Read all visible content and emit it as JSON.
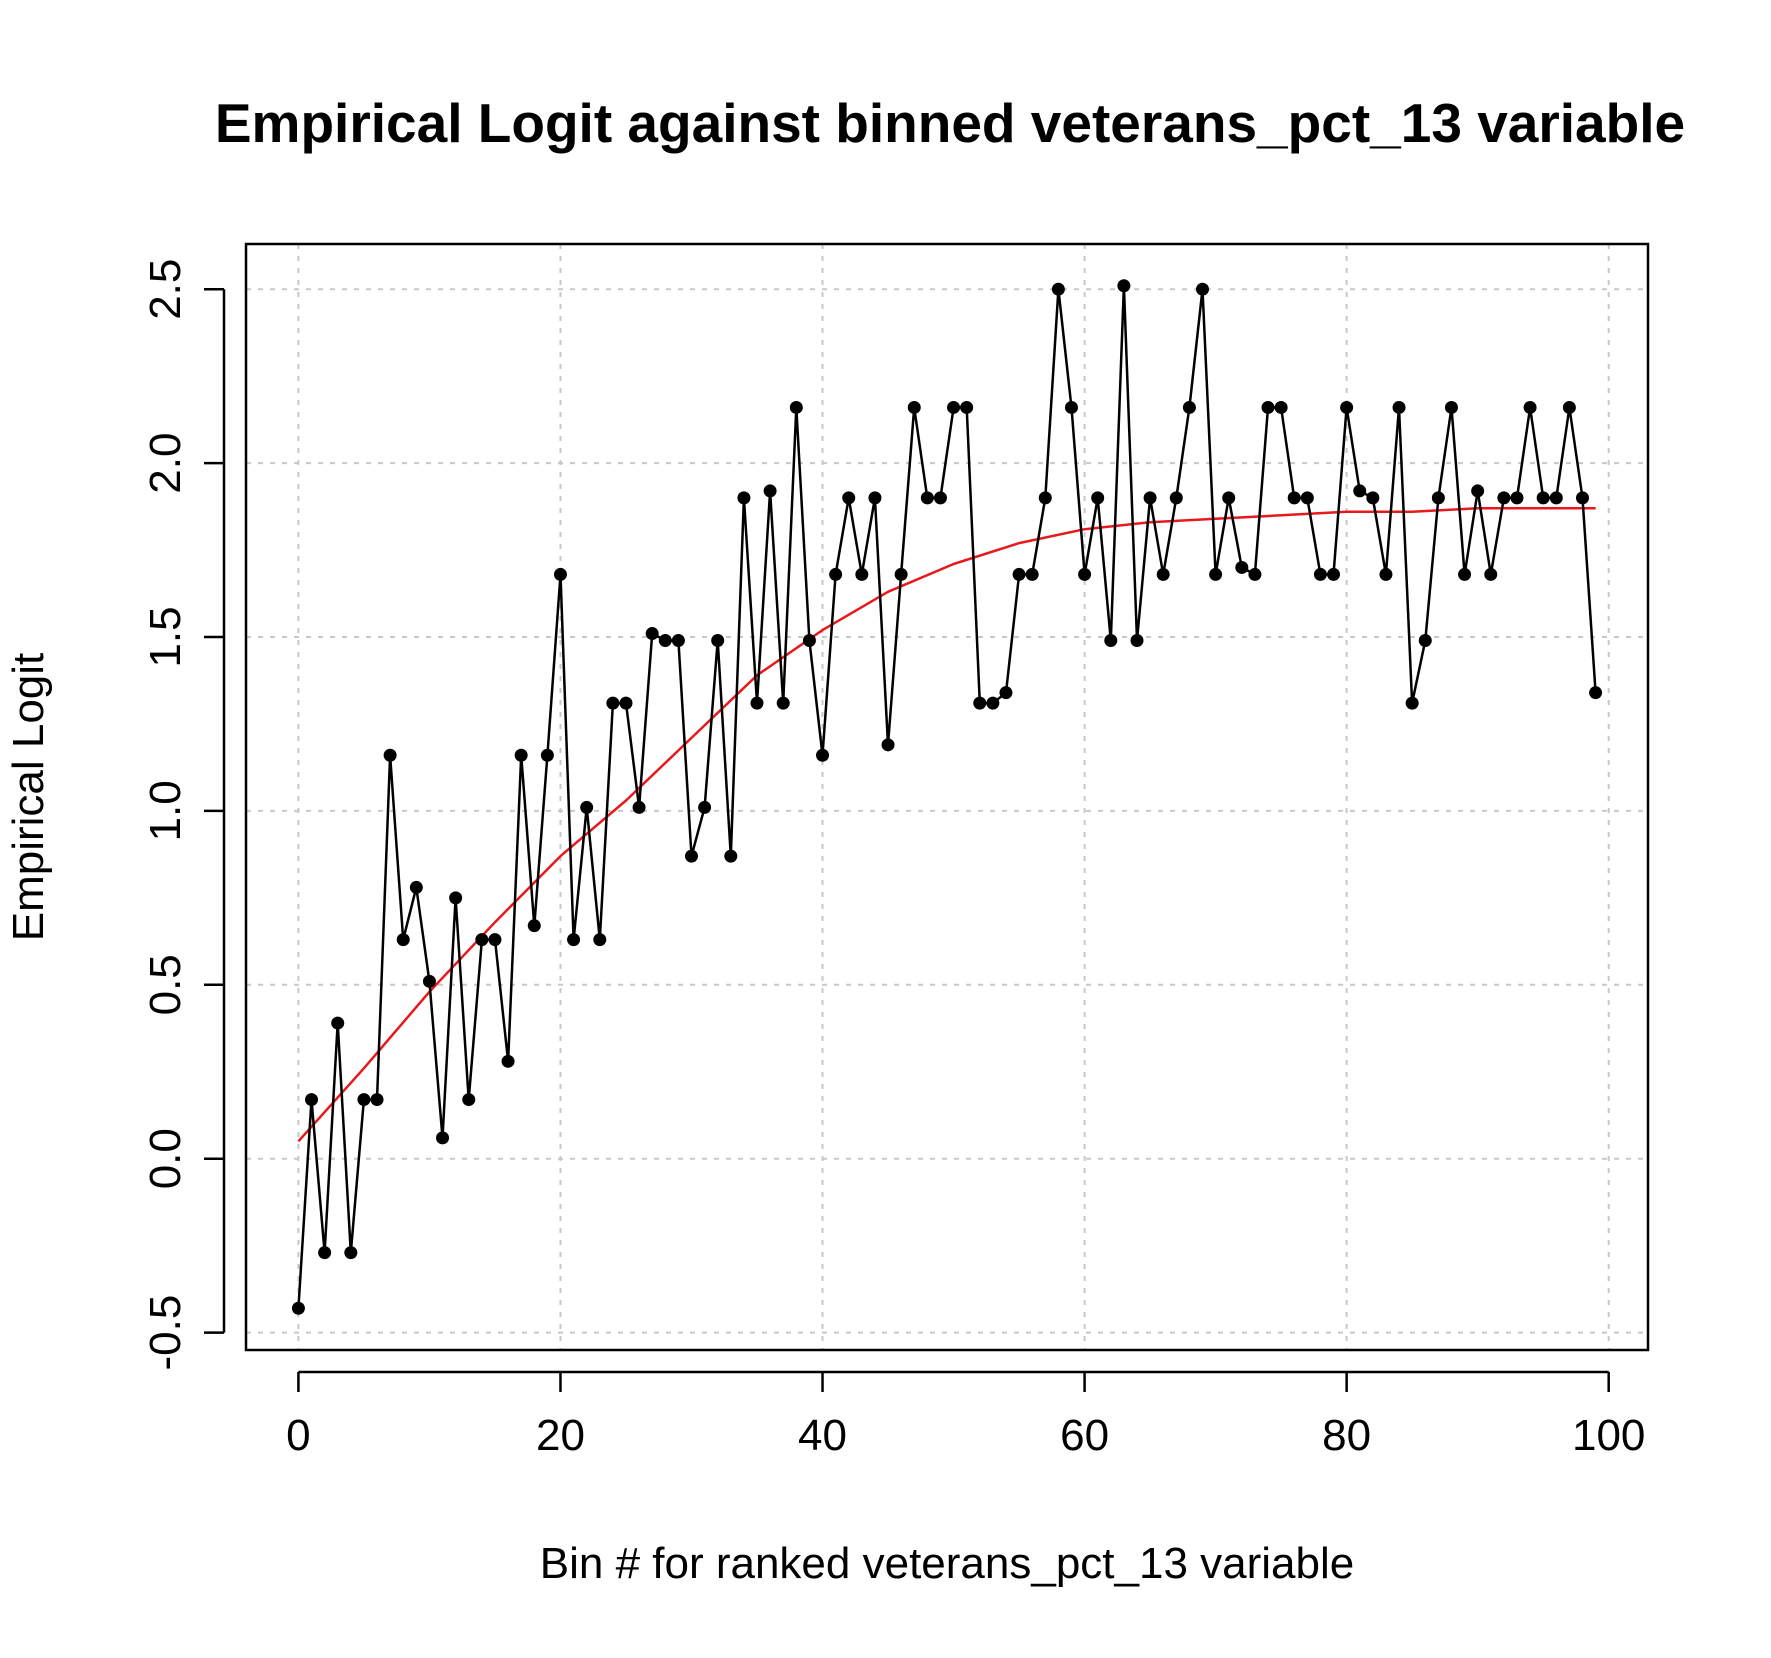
{
  "chart_data": {
    "type": "line",
    "title": "Empirical Logit against binned veterans_pct_13 variable",
    "xlabel": "Bin # for ranked veterans_pct_13 variable",
    "ylabel": "Empirical Logit",
    "xlim": [
      -4,
      103
    ],
    "ylim": [
      -0.55,
      2.63
    ],
    "grid": true,
    "x_ticks": [
      0,
      20,
      40,
      60,
      80,
      100
    ],
    "x_tick_labels": [
      "0",
      "20",
      "40",
      "60",
      "80",
      "100"
    ],
    "y_ticks": [
      -0.5,
      0.0,
      0.5,
      1.0,
      1.5,
      2.0,
      2.5
    ],
    "y_tick_labels": [
      "-0.5",
      "0.0",
      "0.5",
      "1.0",
      "1.5",
      "2.0",
      "2.5"
    ],
    "series": [
      {
        "kind": "points-and-lines",
        "color": "#000000",
        "x": [
          0,
          1,
          2,
          3,
          4,
          5,
          6,
          7,
          8,
          9,
          10,
          11,
          12,
          13,
          14,
          15,
          16,
          17,
          18,
          19,
          20,
          21,
          22,
          23,
          24,
          25,
          26,
          27,
          28,
          29,
          30,
          31,
          32,
          33,
          34,
          35,
          36,
          37,
          38,
          39,
          40,
          41,
          42,
          43,
          44,
          45,
          46,
          47,
          48,
          49,
          50,
          51,
          52,
          53,
          54,
          55,
          56,
          57,
          58,
          59,
          60,
          61,
          62,
          63,
          64,
          65,
          66,
          67,
          68,
          69,
          70,
          71,
          72,
          73,
          74,
          75,
          76,
          77,
          78,
          79,
          80,
          81,
          82,
          83,
          84,
          85,
          86,
          87,
          88,
          89,
          90,
          91,
          92,
          93,
          94,
          95,
          96,
          97,
          98,
          99
        ],
        "values": [
          -0.43,
          0.17,
          -0.27,
          0.39,
          -0.27,
          0.17,
          0.17,
          1.16,
          0.63,
          0.78,
          0.51,
          0.06,
          0.75,
          0.17,
          0.63,
          0.63,
          0.28,
          1.16,
          0.67,
          1.16,
          1.68,
          0.63,
          1.01,
          0.63,
          1.31,
          1.31,
          1.01,
          1.51,
          1.49,
          1.49,
          0.87,
          1.01,
          1.49,
          0.87,
          1.9,
          1.31,
          1.92,
          1.31,
          2.16,
          1.49,
          1.16,
          1.68,
          1.9,
          1.68,
          1.9,
          1.19,
          1.68,
          2.16,
          1.9,
          1.9,
          2.16,
          2.16,
          1.31,
          1.31,
          1.34,
          1.68,
          1.68,
          1.9,
          2.5,
          2.16,
          1.68,
          1.9,
          1.49,
          2.51,
          1.49,
          1.9,
          1.68,
          1.9,
          2.16,
          2.5,
          1.68,
          1.9,
          1.7,
          1.68,
          2.16,
          2.16,
          1.9,
          1.9,
          1.68,
          1.68,
          2.16,
          1.92,
          1.9,
          1.68,
          2.16,
          1.31,
          1.49,
          1.9,
          2.16,
          1.68,
          1.92,
          1.68,
          1.9,
          1.9,
          2.16,
          1.9,
          1.9,
          2.16,
          1.9,
          1.34
        ]
      },
      {
        "kind": "smooth-fit",
        "color": "#e8191c",
        "x": [
          0,
          5,
          10,
          15,
          20,
          25,
          30,
          35,
          40,
          45,
          50,
          55,
          60,
          65,
          70,
          75,
          80,
          85,
          90,
          95,
          99
        ],
        "values": [
          0.05,
          0.26,
          0.48,
          0.68,
          0.87,
          1.03,
          1.21,
          1.39,
          1.52,
          1.63,
          1.71,
          1.77,
          1.81,
          1.83,
          1.84,
          1.85,
          1.86,
          1.86,
          1.87,
          1.87,
          1.87
        ]
      }
    ]
  }
}
